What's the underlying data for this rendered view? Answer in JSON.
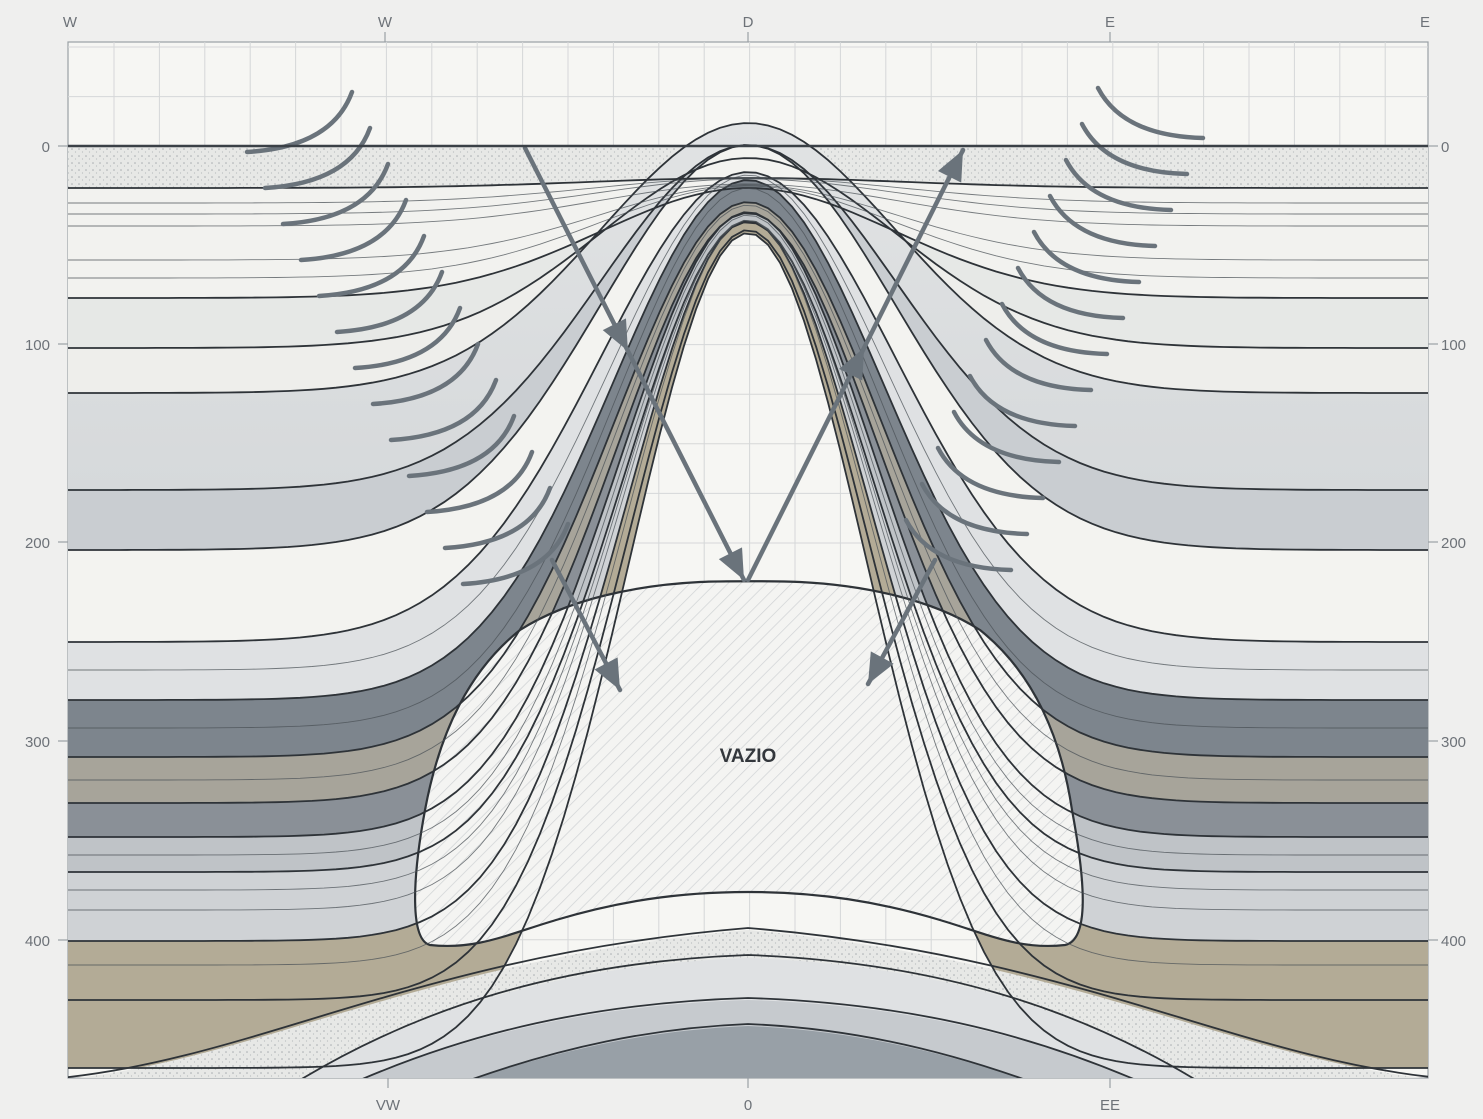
{
  "diagram": {
    "top_labels": [
      "W",
      "W",
      "D",
      "E",
      "E"
    ],
    "bottom_labels": [
      "VW",
      "0",
      "EE"
    ],
    "depth_ticks": [
      "0",
      "100",
      "200",
      "300",
      "400"
    ],
    "void_label": "VAZIO"
  },
  "colors": {
    "background": "#efefee",
    "panel": "#f6f6f3",
    "grid": "#d5d7d8",
    "layer_line": "#2e3338",
    "layer_light": "#dcdfe1",
    "layer_mid": "#a3a9b0",
    "layer_dark": "#7d858d",
    "layer_tan": "#b3ab96",
    "arrow": "#6a737b"
  }
}
